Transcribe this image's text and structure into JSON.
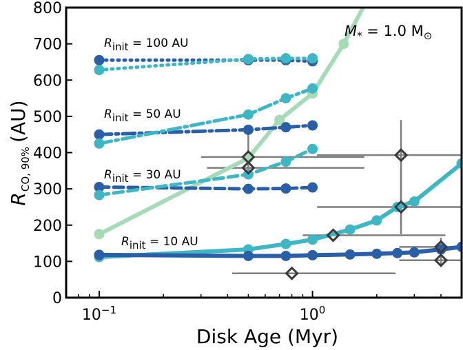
{
  "chart_data": {
    "type": "line",
    "xscale": "log",
    "xlim": [
      0.07,
      5.0
    ],
    "ylim": [
      0,
      800
    ],
    "xlabel": "Disk Age (Myr)",
    "ylabel_main": "R",
    "ylabel_sub": "CO, 90%",
    "ylabel_unit": "(AU)",
    "annotation": {
      "sym": "M",
      "sub": "*",
      "rest": " = 1.0 M",
      "sun": "⊙"
    },
    "xticks": [
      {
        "value": 0.1,
        "base": "10",
        "exp": "−1"
      },
      {
        "value": 1.0,
        "base": "10",
        "exp": "0"
      }
    ],
    "yticks": [
      0,
      100,
      200,
      300,
      400,
      500,
      600,
      700,
      800
    ],
    "group_labels": [
      {
        "r": "R",
        "sub": "init",
        "rest": " = 100 AU"
      },
      {
        "r": "R",
        "sub": "init",
        "rest": " = 50 AU"
      },
      {
        "r": "R",
        "sub": "init",
        "rest": " = 30 AU"
      },
      {
        "r": "R",
        "sub": "init",
        "rest": " = 10 AU"
      }
    ],
    "colors": {
      "dark": "#2a5fa8",
      "teal": "#3fb6c4",
      "light": "#a6dbb7",
      "obs": "#7f7f7f",
      "obs_edge": "#3a3a3a"
    },
    "series": [
      {
        "style": "light",
        "dash": "solid",
        "width": 6,
        "x": [
          0.1,
          0.5,
          0.7,
          1.0,
          1.4,
          1.8
        ],
        "y": [
          175,
          385,
          490,
          563,
          700,
          820
        ]
      },
      {
        "style": "dark",
        "dash": "dotted",
        "width": 5,
        "x": [
          0.1,
          0.5,
          0.75,
          1.0
        ],
        "y": [
          655,
          655,
          655,
          652
        ]
      },
      {
        "style": "teal",
        "dash": "dotted",
        "width": 5,
        "x": [
          0.1,
          0.5,
          0.75,
          1.0
        ],
        "y": [
          628,
          658,
          660,
          660
        ]
      },
      {
        "style": "dark",
        "dash": "dashdot",
        "width": 5,
        "x": [
          0.1,
          0.5,
          0.75,
          1.0
        ],
        "y": [
          450,
          463,
          470,
          475
        ]
      },
      {
        "style": "teal",
        "dash": "dashdot",
        "width": 5,
        "x": [
          0.1,
          0.5,
          0.75,
          1.0
        ],
        "y": [
          425,
          505,
          550,
          577
        ]
      },
      {
        "style": "dark",
        "dash": "dashed",
        "width": 5,
        "x": [
          0.1,
          0.5,
          0.75,
          1.0
        ],
        "y": [
          305,
          300,
          301,
          304
        ]
      },
      {
        "style": "teal",
        "dash": "dashed",
        "width": 5,
        "x": [
          0.1,
          0.5,
          0.75,
          1.0
        ],
        "y": [
          283,
          340,
          375,
          410
        ]
      },
      {
        "style": "teal",
        "dash": "solid",
        "width": 6,
        "x": [
          0.1,
          0.5,
          0.75,
          1.0,
          1.5,
          2.0,
          2.5,
          3.0,
          5.0
        ],
        "y": [
          112,
          133,
          148,
          160,
          188,
          213,
          250,
          265,
          370
        ]
      },
      {
        "style": "dark",
        "dash": "solid",
        "width": 6,
        "x": [
          0.1,
          0.5,
          0.75,
          1.0,
          1.5,
          2.0,
          2.5,
          3.0,
          4.0,
          5.0
        ],
        "y": [
          118,
          115,
          115,
          117,
          119,
          121,
          123,
          125,
          133,
          140
        ]
      }
    ],
    "observations": [
      {
        "x": 0.5,
        "y": 388,
        "xerr": [
          0.3,
          1.75
        ],
        "yerr": [
          388,
          388
        ]
      },
      {
        "x": 0.5,
        "y": 358,
        "xerr": [
          0.32,
          1.75
        ],
        "yerr": [
          340,
          465
        ]
      },
      {
        "x": 0.8,
        "y": 67,
        "xerr": [
          0.42,
          2.45
        ],
        "yerr": [
          67,
          67
        ]
      },
      {
        "x": 1.25,
        "y": 172,
        "xerr": [
          0.9,
          4.2
        ],
        "yerr": [
          172,
          172
        ]
      },
      {
        "x": 2.6,
        "y": 393,
        "xerr": [
          1.05,
          5.0
        ],
        "yerr": [
          175,
          490
        ]
      },
      {
        "x": 2.6,
        "y": 250,
        "xerr": [
          1.05,
          5.0
        ],
        "yerr": [
          185,
          390
        ]
      },
      {
        "x": 4.0,
        "y": 140,
        "xerr": [
          2.55,
          5.0
        ],
        "yerr": [
          115,
          165
        ]
      },
      {
        "x": 4.0,
        "y": 103,
        "xerr": [
          2.55,
          5.0
        ],
        "yerr": [
          85,
          125
        ]
      }
    ]
  }
}
